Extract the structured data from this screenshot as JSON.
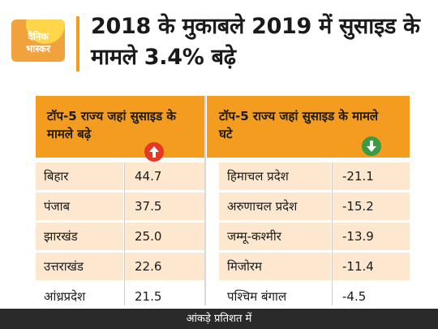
{
  "logo": {
    "line1": "दैनिक",
    "line2": "भास्कर"
  },
  "title": "2018 के मुकाबले 2019 में सुसाइड के मामले 3.4% बढ़े",
  "colors": {
    "accent": "#f39c1f",
    "row_shade": "#fde8cf",
    "up": "#e53925",
    "down": "#3a9a45",
    "footer": "#2a2a2a"
  },
  "icons": {
    "up": "arrow-up-icon",
    "down": "arrow-down-icon"
  },
  "chart_data": {
    "type": "table",
    "title": "2018 के मुकाबले 2019 में सुसाइड के मामले 3.4% बढ़े",
    "columns": [
      {
        "header": "टॉप-5 राज्य जहां सुसाइड के मामले बढ़े",
        "trend": "up"
      },
      {
        "header": "टॉप-5 राज्य जहां सुसाइड के मामले घटे",
        "trend": "down"
      }
    ],
    "increase": [
      {
        "state": "बिहार",
        "value": "44.7"
      },
      {
        "state": "पंजाब",
        "value": "37.5"
      },
      {
        "state": "झारखंड",
        "value": "25.0"
      },
      {
        "state": "उत्तराखंड",
        "value": "22.6"
      },
      {
        "state": "आंध्रप्रदेश",
        "value": "21.5"
      }
    ],
    "decrease": [
      {
        "state": "हिमाचल प्रदेश",
        "value": "-21.1"
      },
      {
        "state": "अरुणाचल प्रदेश",
        "value": "-15.2"
      },
      {
        "state": "जम्मू-कश्मीर",
        "value": "-13.9"
      },
      {
        "state": "मिजोरम",
        "value": "-11.4"
      },
      {
        "state": "पश्चिम बंगाल",
        "value": "-4.5"
      }
    ],
    "footnote": "आंकड़े प्रतिशत में"
  }
}
